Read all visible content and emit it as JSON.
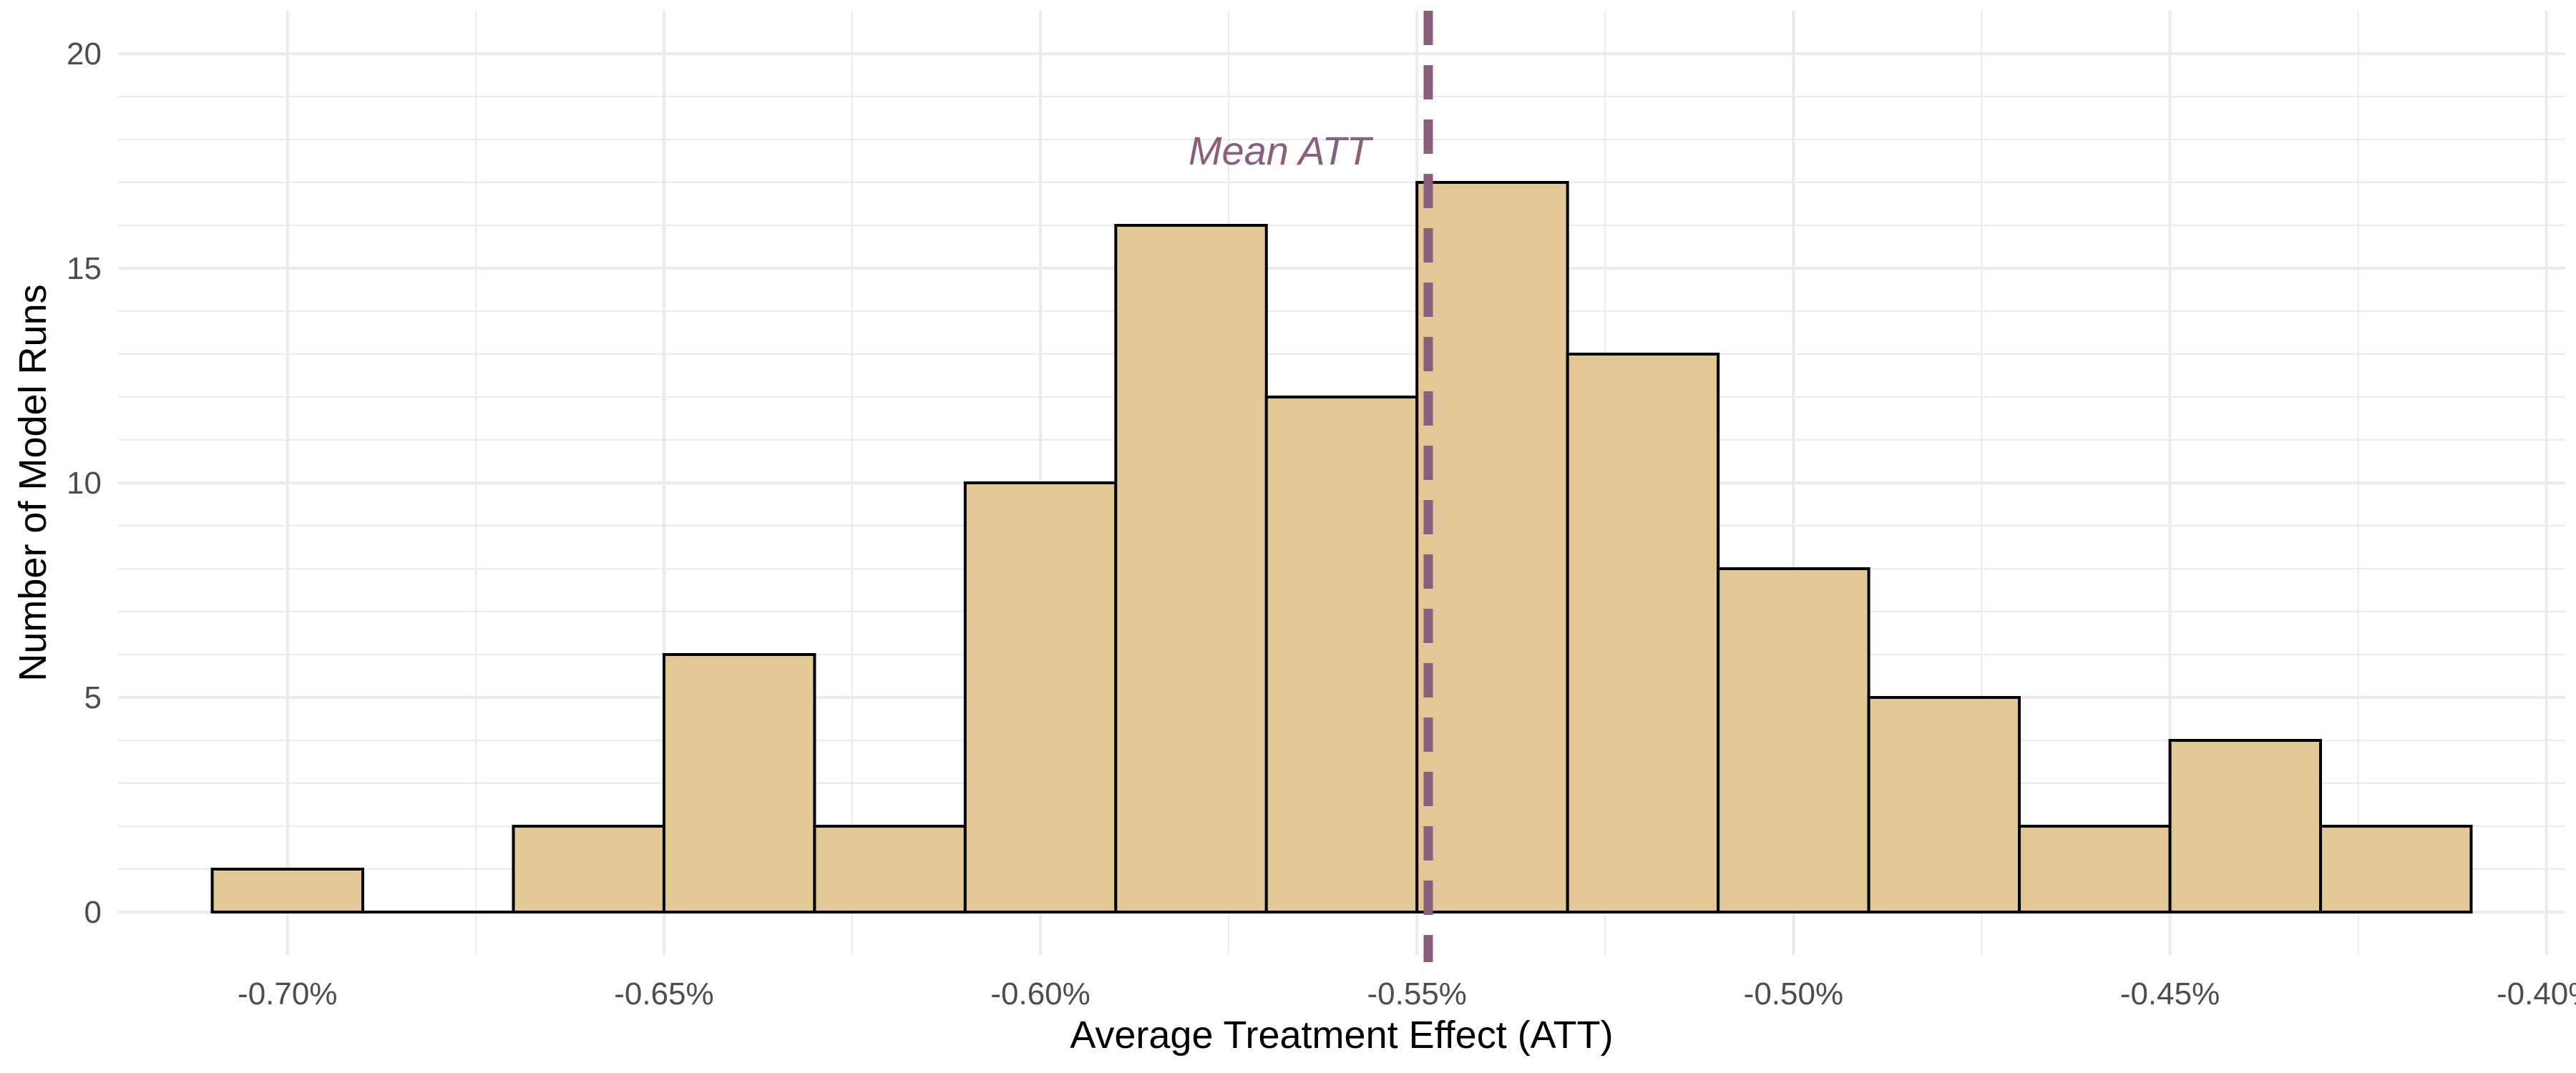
{
  "chart_data": {
    "type": "bar",
    "subtype": "histogram",
    "title": "",
    "xlabel": "Average Treatment Effect (ATT)",
    "ylabel": "Number of Model Runs",
    "xlim": [
      -0.7225,
      -0.3975
    ],
    "ylim": [
      -1,
      21
    ],
    "x_ticks": [
      -0.7,
      -0.65,
      -0.6,
      -0.55,
      -0.5,
      -0.45,
      -0.4
    ],
    "x_tick_labels": [
      "-0.70%",
      "-0.65%",
      "-0.60%",
      "-0.55%",
      "-0.50%",
      "-0.45%",
      "-0.40%"
    ],
    "y_ticks": [
      0,
      5,
      10,
      15,
      20
    ],
    "y_tick_labels": [
      "0",
      "5",
      "10",
      "15",
      "20"
    ],
    "grid": true,
    "legend": "none",
    "bins": [
      {
        "x0": -0.71,
        "x1": -0.69,
        "count": 1
      },
      {
        "x0": -0.69,
        "x1": -0.67,
        "count": 0
      },
      {
        "x0": -0.67,
        "x1": -0.65,
        "count": 2
      },
      {
        "x0": -0.65,
        "x1": -0.63,
        "count": 6
      },
      {
        "x0": -0.63,
        "x1": -0.61,
        "count": 2
      },
      {
        "x0": -0.61,
        "x1": -0.59,
        "count": 10
      },
      {
        "x0": -0.59,
        "x1": -0.57,
        "count": 16
      },
      {
        "x0": -0.57,
        "x1": -0.55,
        "count": 12
      },
      {
        "x0": -0.55,
        "x1": -0.53,
        "count": 17
      },
      {
        "x0": -0.53,
        "x1": -0.51,
        "count": 13
      },
      {
        "x0": -0.51,
        "x1": -0.49,
        "count": 8
      },
      {
        "x0": -0.49,
        "x1": -0.47,
        "count": 5
      },
      {
        "x0": -0.47,
        "x1": -0.45,
        "count": 2
      },
      {
        "x0": -0.45,
        "x1": -0.43,
        "count": 4
      },
      {
        "x0": -0.43,
        "x1": -0.41,
        "count": 2
      }
    ],
    "mean_line": {
      "x": -0.5485,
      "label": "Mean ATT",
      "style": "dashed"
    },
    "colors": {
      "bar_fill": "#E3C797",
      "bar_stroke": "#000000",
      "mean_line": "#8A5F7D",
      "grid": "#EBEBEB",
      "tick_text": "#4D4D4D"
    }
  }
}
